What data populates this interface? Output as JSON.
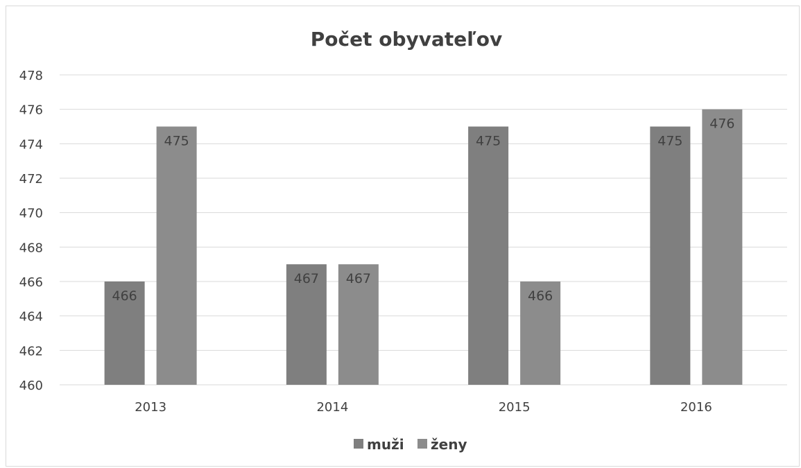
{
  "chart_data": {
    "type": "bar",
    "title": "Počet obyvateľov",
    "categories": [
      "2013",
      "2014",
      "2015",
      "2016"
    ],
    "series": [
      {
        "name": "muži",
        "values": [
          466,
          467,
          475,
          475
        ],
        "color": "#7f7f7f"
      },
      {
        "name": "ženy",
        "values": [
          475,
          467,
          466,
          476
        ],
        "color": "#8c8c8c"
      }
    ],
    "ylim": [
      460,
      478
    ],
    "yticks": [
      460,
      462,
      464,
      466,
      468,
      470,
      472,
      474,
      476,
      478
    ],
    "grid": true,
    "legend": "bottom",
    "data_labels": true
  }
}
